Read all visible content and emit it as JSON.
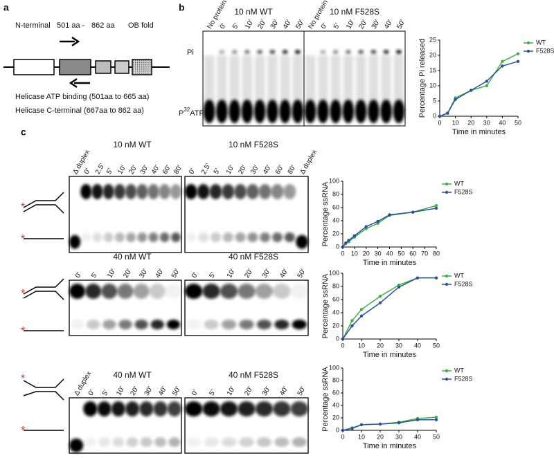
{
  "panels": {
    "a": "a",
    "b": "b",
    "c": "c"
  },
  "domain_diagram": {
    "n_terminal": "N-terminal",
    "start": "501 aa -",
    "end": "862 aa",
    "ob_fold": "OB fold",
    "atp_binding": "Helicase ATP binding (501aa to 665 aa)",
    "c_terminal": "Helicase C-terminal (667aa to 862 aa)"
  },
  "atpase_gel": {
    "pi_label": "Pi",
    "atp_label": {
      "base": "P",
      "sup": "32",
      "rest": "ATP"
    },
    "halves": [
      {
        "title": "10 nM WT",
        "lanes": [
          "No protein",
          "0'",
          "5'",
          "10'",
          "20'",
          "30'",
          "40'",
          "50'"
        ]
      },
      {
        "title": "10 nM F528S",
        "lanes": [
          "No protein",
          "0'",
          "5'",
          "10'",
          "20'",
          "30'",
          "40'",
          "50'"
        ]
      }
    ]
  },
  "unwinding_gels": [
    [
      {
        "title": "10 nM WT",
        "lanes": [
          "Δ duplex",
          "0'",
          "2.5'",
          "5'",
          "10'",
          "20'",
          "30'",
          "40'",
          "60'",
          "80'"
        ]
      },
      {
        "title": "10 nM F528S",
        "lanes": [
          "0'",
          "2.5'",
          "5'",
          "10'",
          "20'",
          "30'",
          "40'",
          "60'",
          "80'",
          "Δ duplex"
        ]
      }
    ],
    [
      {
        "title": "40 nM WT",
        "lanes": [
          "0'",
          "5'",
          "10'",
          "20'",
          "30'",
          "40'",
          "50'"
        ]
      },
      {
        "title": "40 nM F528S",
        "lanes": [
          "0'",
          "5'",
          "10'",
          "20'",
          "30'",
          "40'",
          "50'"
        ]
      }
    ],
    [
      {
        "title": "40 nM WT",
        "lanes": [
          "Δ duplex",
          "0'",
          "5'",
          "10'",
          "20'",
          "30'",
          "40'",
          "50'"
        ]
      },
      {
        "title": "40 nM F528S",
        "lanes": [
          "0'",
          "5'",
          "10'",
          "20'",
          "30'",
          "40'",
          "50'"
        ]
      }
    ]
  ],
  "chart_data": [
    {
      "type": "line",
      "xlabel": "Time in minutes",
      "ylabel": "Percentage Pi released",
      "x": [
        0,
        5,
        10,
        20,
        30,
        40,
        50
      ],
      "series": [
        {
          "name": "WT",
          "color": "#3cb043",
          "values": [
            0,
            1,
            6,
            8.5,
            10,
            18,
            20.5
          ]
        },
        {
          "name": "F528S",
          "color": "#2e4fa0",
          "values": [
            0,
            1,
            5.5,
            8.5,
            11.5,
            16.5,
            18
          ]
        }
      ],
      "xlim": [
        0,
        50
      ],
      "ylim": [
        0,
        25
      ],
      "xticks": [
        0,
        10,
        20,
        30,
        40,
        50
      ],
      "yticks": [
        0,
        5,
        10,
        15,
        20,
        25
      ],
      "legend": "upper right"
    },
    {
      "type": "line",
      "xlabel": "Time in minutes",
      "ylabel": "Percentage ssRNA",
      "x": [
        0,
        2.5,
        5,
        10,
        20,
        30,
        40,
        60,
        80
      ],
      "series": [
        {
          "name": "WT",
          "color": "#3cb043",
          "values": [
            0,
            5,
            8,
            15,
            28,
            36,
            48,
            53,
            63
          ]
        },
        {
          "name": "F528S",
          "color": "#2e4fa0",
          "values": [
            0,
            6,
            10,
            17,
            31,
            39,
            49,
            53,
            59
          ]
        }
      ],
      "xlim": [
        0,
        80
      ],
      "ylim": [
        0,
        100
      ],
      "xticks": [
        0,
        10,
        20,
        30,
        40,
        50,
        60,
        70,
        80
      ],
      "yticks": [
        0,
        20,
        40,
        60,
        80,
        100
      ],
      "legend": "upper right"
    },
    {
      "type": "line",
      "xlabel": "Time in minutes",
      "ylabel": "Percentage ssRNA",
      "x": [
        0,
        5,
        10,
        20,
        30,
        40,
        50
      ],
      "series": [
        {
          "name": "WT",
          "color": "#3cb043",
          "values": [
            0,
            28,
            45,
            65,
            82,
            93,
            93
          ]
        },
        {
          "name": "F528S",
          "color": "#2e4fa0",
          "values": [
            0,
            20,
            35,
            55,
            79,
            93,
            93
          ]
        }
      ],
      "xlim": [
        0,
        50
      ],
      "ylim": [
        0,
        100
      ],
      "xticks": [
        0,
        10,
        20,
        30,
        40,
        50
      ],
      "yticks": [
        0,
        20,
        40,
        60,
        80,
        100
      ],
      "legend": "upper right"
    },
    {
      "type": "line",
      "xlabel": "Time in minutes",
      "ylabel": "Percentage ssRNA",
      "x": [
        0,
        5,
        10,
        20,
        30,
        40,
        50
      ],
      "series": [
        {
          "name": "WT",
          "color": "#3cb043",
          "values": [
            0,
            4,
            9,
            10,
            13,
            19,
            21
          ]
        },
        {
          "name": "F528S",
          "color": "#2e4fa0",
          "values": [
            0,
            3,
            9,
            10,
            12,
            17,
            17
          ]
        }
      ],
      "xlim": [
        0,
        50
      ],
      "ylim": [
        0,
        100
      ],
      "xticks": [
        0,
        10,
        20,
        30,
        40,
        50
      ],
      "yticks": [
        0,
        20,
        40,
        60,
        80,
        100
      ],
      "legend": "upper right"
    }
  ]
}
